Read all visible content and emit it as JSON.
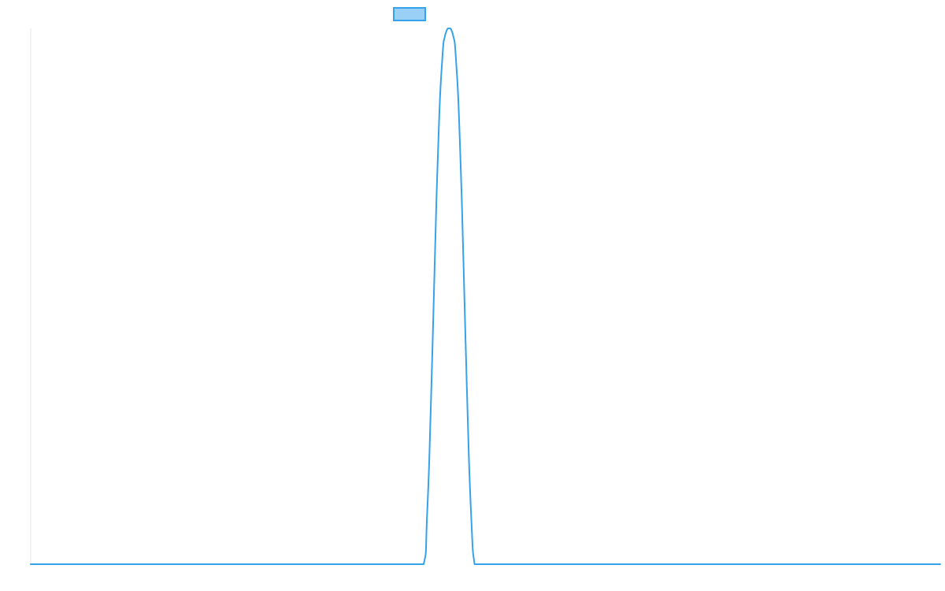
{
  "chart_data": {
    "type": "line",
    "title": "",
    "xlabel": "",
    "ylabel": "",
    "grid": false,
    "legend": {
      "position": "top-center",
      "entries": [
        {
          "label": "",
          "color": "#36a2eb",
          "fill": "#9ad0f5"
        }
      ]
    },
    "xlim": [
      0,
      100
    ],
    "ylim": [
      0,
      1
    ],
    "series": [
      {
        "color": "#36a2eb",
        "x": [
          0,
          43.2,
          43.6,
          44,
          44.4,
          44.8,
          45.2,
          45.6,
          46,
          46.4,
          46.8,
          47.2,
          47.6,
          48,
          48.4,
          48.8,
          49.2,
          49.6,
          50,
          100
        ],
        "y": [
          0,
          0,
          0.1,
          0.3,
          0.55,
          0.78,
          0.93,
          0.99,
          1,
          0.99,
          0.93,
          0.78,
          0.55,
          0.3,
          0.1,
          0,
          0,
          0,
          0,
          0
        ]
      }
    ]
  }
}
